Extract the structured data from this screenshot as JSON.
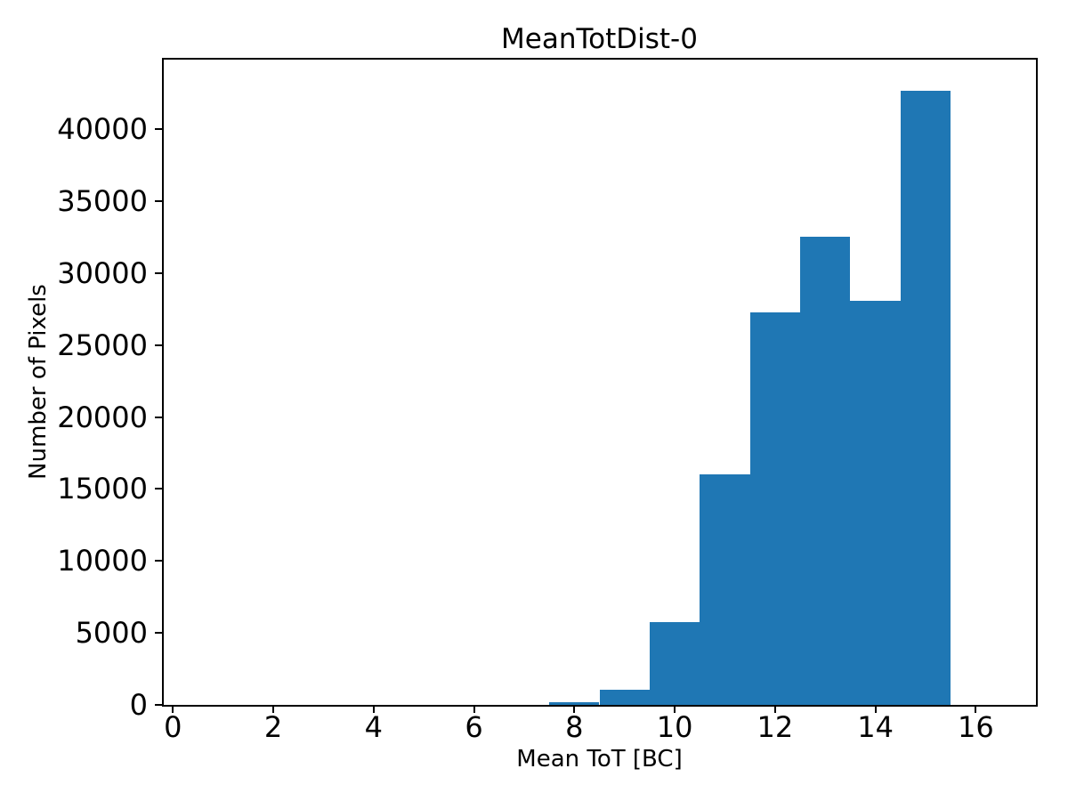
{
  "figure": {
    "background": "#ffffff",
    "text_color": "#000000"
  },
  "chart_data": {
    "type": "histogram",
    "title": "MeanTotDist-0",
    "xlabel": "Mean ToT [BC]",
    "ylabel": "Number of Pixels",
    "bar_color": "#1f77b4",
    "bin_edges": [
      7.5,
      8.5,
      9.5,
      10.5,
      11.5,
      12.5,
      13.5,
      14.5,
      15.5
    ],
    "counts": [
      200,
      1050,
      5750,
      16000,
      27300,
      32550,
      28050,
      42700
    ],
    "xlim": [
      -0.2,
      17.2
    ],
    "ylim": [
      0,
      44900
    ],
    "xticks": [
      0,
      2,
      4,
      6,
      8,
      10,
      12,
      14,
      16
    ],
    "xtick_labels": [
      "0",
      "2",
      "4",
      "6",
      "8",
      "10",
      "12",
      "14",
      "16"
    ],
    "yticks": [
      0,
      5000,
      10000,
      15000,
      20000,
      25000,
      30000,
      35000,
      40000
    ],
    "ytick_labels": [
      "0",
      "5000",
      "10000",
      "15000",
      "20000",
      "25000",
      "30000",
      "35000",
      "40000"
    ],
    "grid": false,
    "legend_position": "none"
  }
}
